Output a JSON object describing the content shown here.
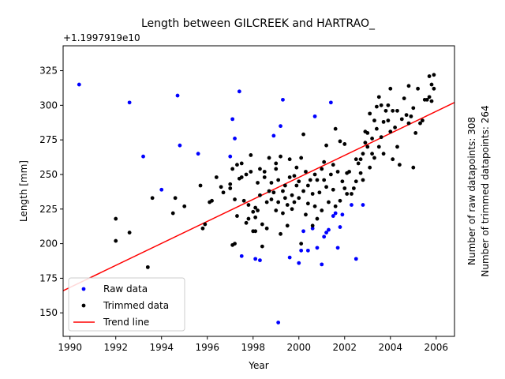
{
  "chart_data": {
    "type": "scatter",
    "title": "Length between GILCREEK and HARTRAO_",
    "xlabel": "Year",
    "ylabel": "Length [mm]",
    "offset_label": "+1.1997919e10",
    "xlim": [
      1989.7,
      2006.8
    ],
    "ylim": [
      133,
      343
    ],
    "xticks": [
      1990,
      1992,
      1994,
      1996,
      1998,
      2000,
      2002,
      2004,
      2006
    ],
    "yticks": [
      150,
      175,
      200,
      225,
      250,
      275,
      300,
      325
    ],
    "legend": {
      "position": "lower-left",
      "entries": [
        {
          "label": "Raw data",
          "color": "#0000ff",
          "kind": "point"
        },
        {
          "label": "Trimmed data",
          "color": "#000000",
          "kind": "point"
        },
        {
          "label": "Trend line",
          "color": "#ff0000",
          "kind": "line"
        }
      ]
    },
    "side_notes": [
      "Number of raw datapoints: 308",
      "Number of trimmed datapoints: 264"
    ],
    "trend": {
      "x": [
        1989.7,
        2006.8
      ],
      "y": [
        166,
        302
      ],
      "color": "#ff0000"
    },
    "series": [
      {
        "name": "Raw data",
        "color": "#0000ff",
        "points": [
          [
            1990.4,
            315
          ],
          [
            1992.6,
            302
          ],
          [
            1993.2,
            263
          ],
          [
            1994.0,
            239
          ],
          [
            1994.7,
            307
          ],
          [
            1994.8,
            271
          ],
          [
            1995.6,
            265
          ],
          [
            1997.0,
            263
          ],
          [
            1997.1,
            290
          ],
          [
            1997.2,
            276
          ],
          [
            1997.4,
            310
          ],
          [
            1997.5,
            191
          ],
          [
            1998.1,
            189
          ],
          [
            1998.3,
            188
          ],
          [
            1998.9,
            278
          ],
          [
            1999.1,
            143
          ],
          [
            1999.2,
            285
          ],
          [
            1999.3,
            304
          ],
          [
            1999.6,
            190
          ],
          [
            2000.0,
            186
          ],
          [
            2000.1,
            195
          ],
          [
            2000.2,
            209
          ],
          [
            2000.4,
            195
          ],
          [
            2000.6,
            211
          ],
          [
            2000.7,
            292
          ],
          [
            2000.8,
            197
          ],
          [
            2001.0,
            185
          ],
          [
            2001.1,
            205
          ],
          [
            2001.2,
            208
          ],
          [
            2001.3,
            210
          ],
          [
            2001.4,
            302
          ],
          [
            2001.5,
            220
          ],
          [
            2001.6,
            222
          ],
          [
            2001.7,
            197
          ],
          [
            2001.8,
            212
          ],
          [
            2001.9,
            221
          ],
          [
            2002.3,
            228
          ],
          [
            2002.5,
            189
          ],
          [
            2002.8,
            228
          ]
        ]
      },
      {
        "name": "Trimmed data",
        "color": "#000000",
        "points": [
          [
            1992.0,
            218
          ],
          [
            1992.0,
            202
          ],
          [
            1992.6,
            208
          ],
          [
            1993.4,
            183
          ],
          [
            1993.6,
            233
          ],
          [
            1994.5,
            222
          ],
          [
            1994.6,
            233
          ],
          [
            1995.0,
            227
          ],
          [
            1995.7,
            242
          ],
          [
            1995.8,
            211
          ],
          [
            1995.9,
            214
          ],
          [
            1996.1,
            230
          ],
          [
            1996.2,
            231
          ],
          [
            1996.4,
            248
          ],
          [
            1996.6,
            241
          ],
          [
            1996.7,
            237
          ],
          [
            1997.0,
            240
          ],
          [
            1997.0,
            243
          ],
          [
            1997.1,
            254
          ],
          [
            1997.1,
            199
          ],
          [
            1997.2,
            200
          ],
          [
            1997.2,
            232
          ],
          [
            1997.3,
            220
          ],
          [
            1997.3,
            257
          ],
          [
            1997.4,
            247
          ],
          [
            1997.5,
            258
          ],
          [
            1997.5,
            248
          ],
          [
            1997.6,
            231
          ],
          [
            1997.7,
            215
          ],
          [
            1997.7,
            250
          ],
          [
            1997.8,
            228
          ],
          [
            1997.8,
            218
          ],
          [
            1997.9,
            252
          ],
          [
            1997.9,
            264
          ],
          [
            1998.0,
            209
          ],
          [
            1998.0,
            223
          ],
          [
            1998.1,
            209
          ],
          [
            1998.1,
            219
          ],
          [
            1998.1,
            226
          ],
          [
            1998.2,
            224
          ],
          [
            1998.2,
            244
          ],
          [
            1998.3,
            254
          ],
          [
            1998.3,
            235
          ],
          [
            1998.4,
            198
          ],
          [
            1998.4,
            214
          ],
          [
            1998.5,
            248
          ],
          [
            1998.5,
            252
          ],
          [
            1998.6,
            211
          ],
          [
            1998.6,
            230
          ],
          [
            1998.7,
            238
          ],
          [
            1998.7,
            262
          ],
          [
            1998.8,
            244
          ],
          [
            1998.8,
            232
          ],
          [
            1998.9,
            237
          ],
          [
            1999.0,
            224
          ],
          [
            1999.0,
            254
          ],
          [
            1999.0,
            258
          ],
          [
            1999.1,
            230
          ],
          [
            1999.1,
            246
          ],
          [
            1999.2,
            263
          ],
          [
            1999.2,
            207
          ],
          [
            1999.3,
            222
          ],
          [
            1999.3,
            238
          ],
          [
            1999.4,
            233
          ],
          [
            1999.4,
            242
          ],
          [
            1999.5,
            228
          ],
          [
            1999.5,
            213
          ],
          [
            1999.6,
            261
          ],
          [
            1999.6,
            248
          ],
          [
            1999.7,
            225
          ],
          [
            1999.7,
            235
          ],
          [
            1999.8,
            249
          ],
          [
            1999.8,
            230
          ],
          [
            1999.9,
            242
          ],
          [
            1999.9,
            255
          ],
          [
            2000.0,
            233
          ],
          [
            2000.0,
            245
          ],
          [
            2000.1,
            262
          ],
          [
            2000.1,
            200
          ],
          [
            2000.2,
            279
          ],
          [
            2000.2,
            238
          ],
          [
            2000.3,
            252
          ],
          [
            2000.3,
            221
          ],
          [
            2000.4,
            242
          ],
          [
            2000.4,
            229
          ],
          [
            2000.5,
            246
          ],
          [
            2000.6,
            236
          ],
          [
            2000.6,
            213
          ],
          [
            2000.7,
            227
          ],
          [
            2000.7,
            250
          ],
          [
            2000.8,
            218
          ],
          [
            2000.8,
            246
          ],
          [
            2000.9,
            237
          ],
          [
            2001.0,
            224
          ],
          [
            2001.0,
            254
          ],
          [
            2001.1,
            259
          ],
          [
            2001.1,
            246
          ],
          [
            2001.2,
            241
          ],
          [
            2001.2,
            271
          ],
          [
            2001.3,
            230
          ],
          [
            2001.4,
            250
          ],
          [
            2001.5,
            257
          ],
          [
            2001.5,
            239
          ],
          [
            2001.6,
            283
          ],
          [
            2001.6,
            227
          ],
          [
            2001.7,
            252
          ],
          [
            2001.8,
            274
          ],
          [
            2001.8,
            231
          ],
          [
            2001.9,
            245
          ],
          [
            2002.0,
            272
          ],
          [
            2002.0,
            240
          ],
          [
            2002.1,
            251
          ],
          [
            2002.1,
            236
          ],
          [
            2002.2,
            252
          ],
          [
            2002.3,
            236
          ],
          [
            2002.4,
            240
          ],
          [
            2002.5,
            245
          ],
          [
            2002.5,
            261
          ],
          [
            2002.6,
            258
          ],
          [
            2002.7,
            261
          ],
          [
            2002.7,
            251
          ],
          [
            2002.8,
            246
          ],
          [
            2002.8,
            265
          ],
          [
            2002.9,
            273
          ],
          [
            2002.9,
            281
          ],
          [
            2003.0,
            270
          ],
          [
            2003.0,
            280
          ],
          [
            2003.1,
            294
          ],
          [
            2003.1,
            255
          ],
          [
            2003.2,
            265
          ],
          [
            2003.2,
            276
          ],
          [
            2003.3,
            289
          ],
          [
            2003.3,
            262
          ],
          [
            2003.4,
            283
          ],
          [
            2003.4,
            299
          ],
          [
            2003.5,
            270
          ],
          [
            2003.5,
            306
          ],
          [
            2003.6,
            277
          ],
          [
            2003.6,
            300
          ],
          [
            2003.7,
            288
          ],
          [
            2003.7,
            265
          ],
          [
            2003.8,
            296
          ],
          [
            2003.9,
            300
          ],
          [
            2003.9,
            289
          ],
          [
            2004.0,
            281
          ],
          [
            2004.0,
            312
          ],
          [
            2004.1,
            261
          ],
          [
            2004.1,
            296
          ],
          [
            2004.2,
            284
          ],
          [
            2004.3,
            270
          ],
          [
            2004.3,
            296
          ],
          [
            2004.4,
            257
          ],
          [
            2004.5,
            290
          ],
          [
            2004.6,
            305
          ],
          [
            2004.7,
            293
          ],
          [
            2004.8,
            287
          ],
          [
            2004.8,
            314
          ],
          [
            2004.9,
            292
          ],
          [
            2005.0,
            255
          ],
          [
            2005.0,
            298
          ],
          [
            2005.1,
            280
          ],
          [
            2005.2,
            312
          ],
          [
            2005.3,
            287
          ],
          [
            2005.4,
            289
          ],
          [
            2005.5,
            304
          ],
          [
            2005.6,
            304
          ],
          [
            2005.7,
            321
          ],
          [
            2005.7,
            306
          ],
          [
            2005.8,
            303
          ],
          [
            2005.8,
            315
          ],
          [
            2005.9,
            322
          ],
          [
            2005.9,
            312
          ]
        ]
      }
    ]
  }
}
